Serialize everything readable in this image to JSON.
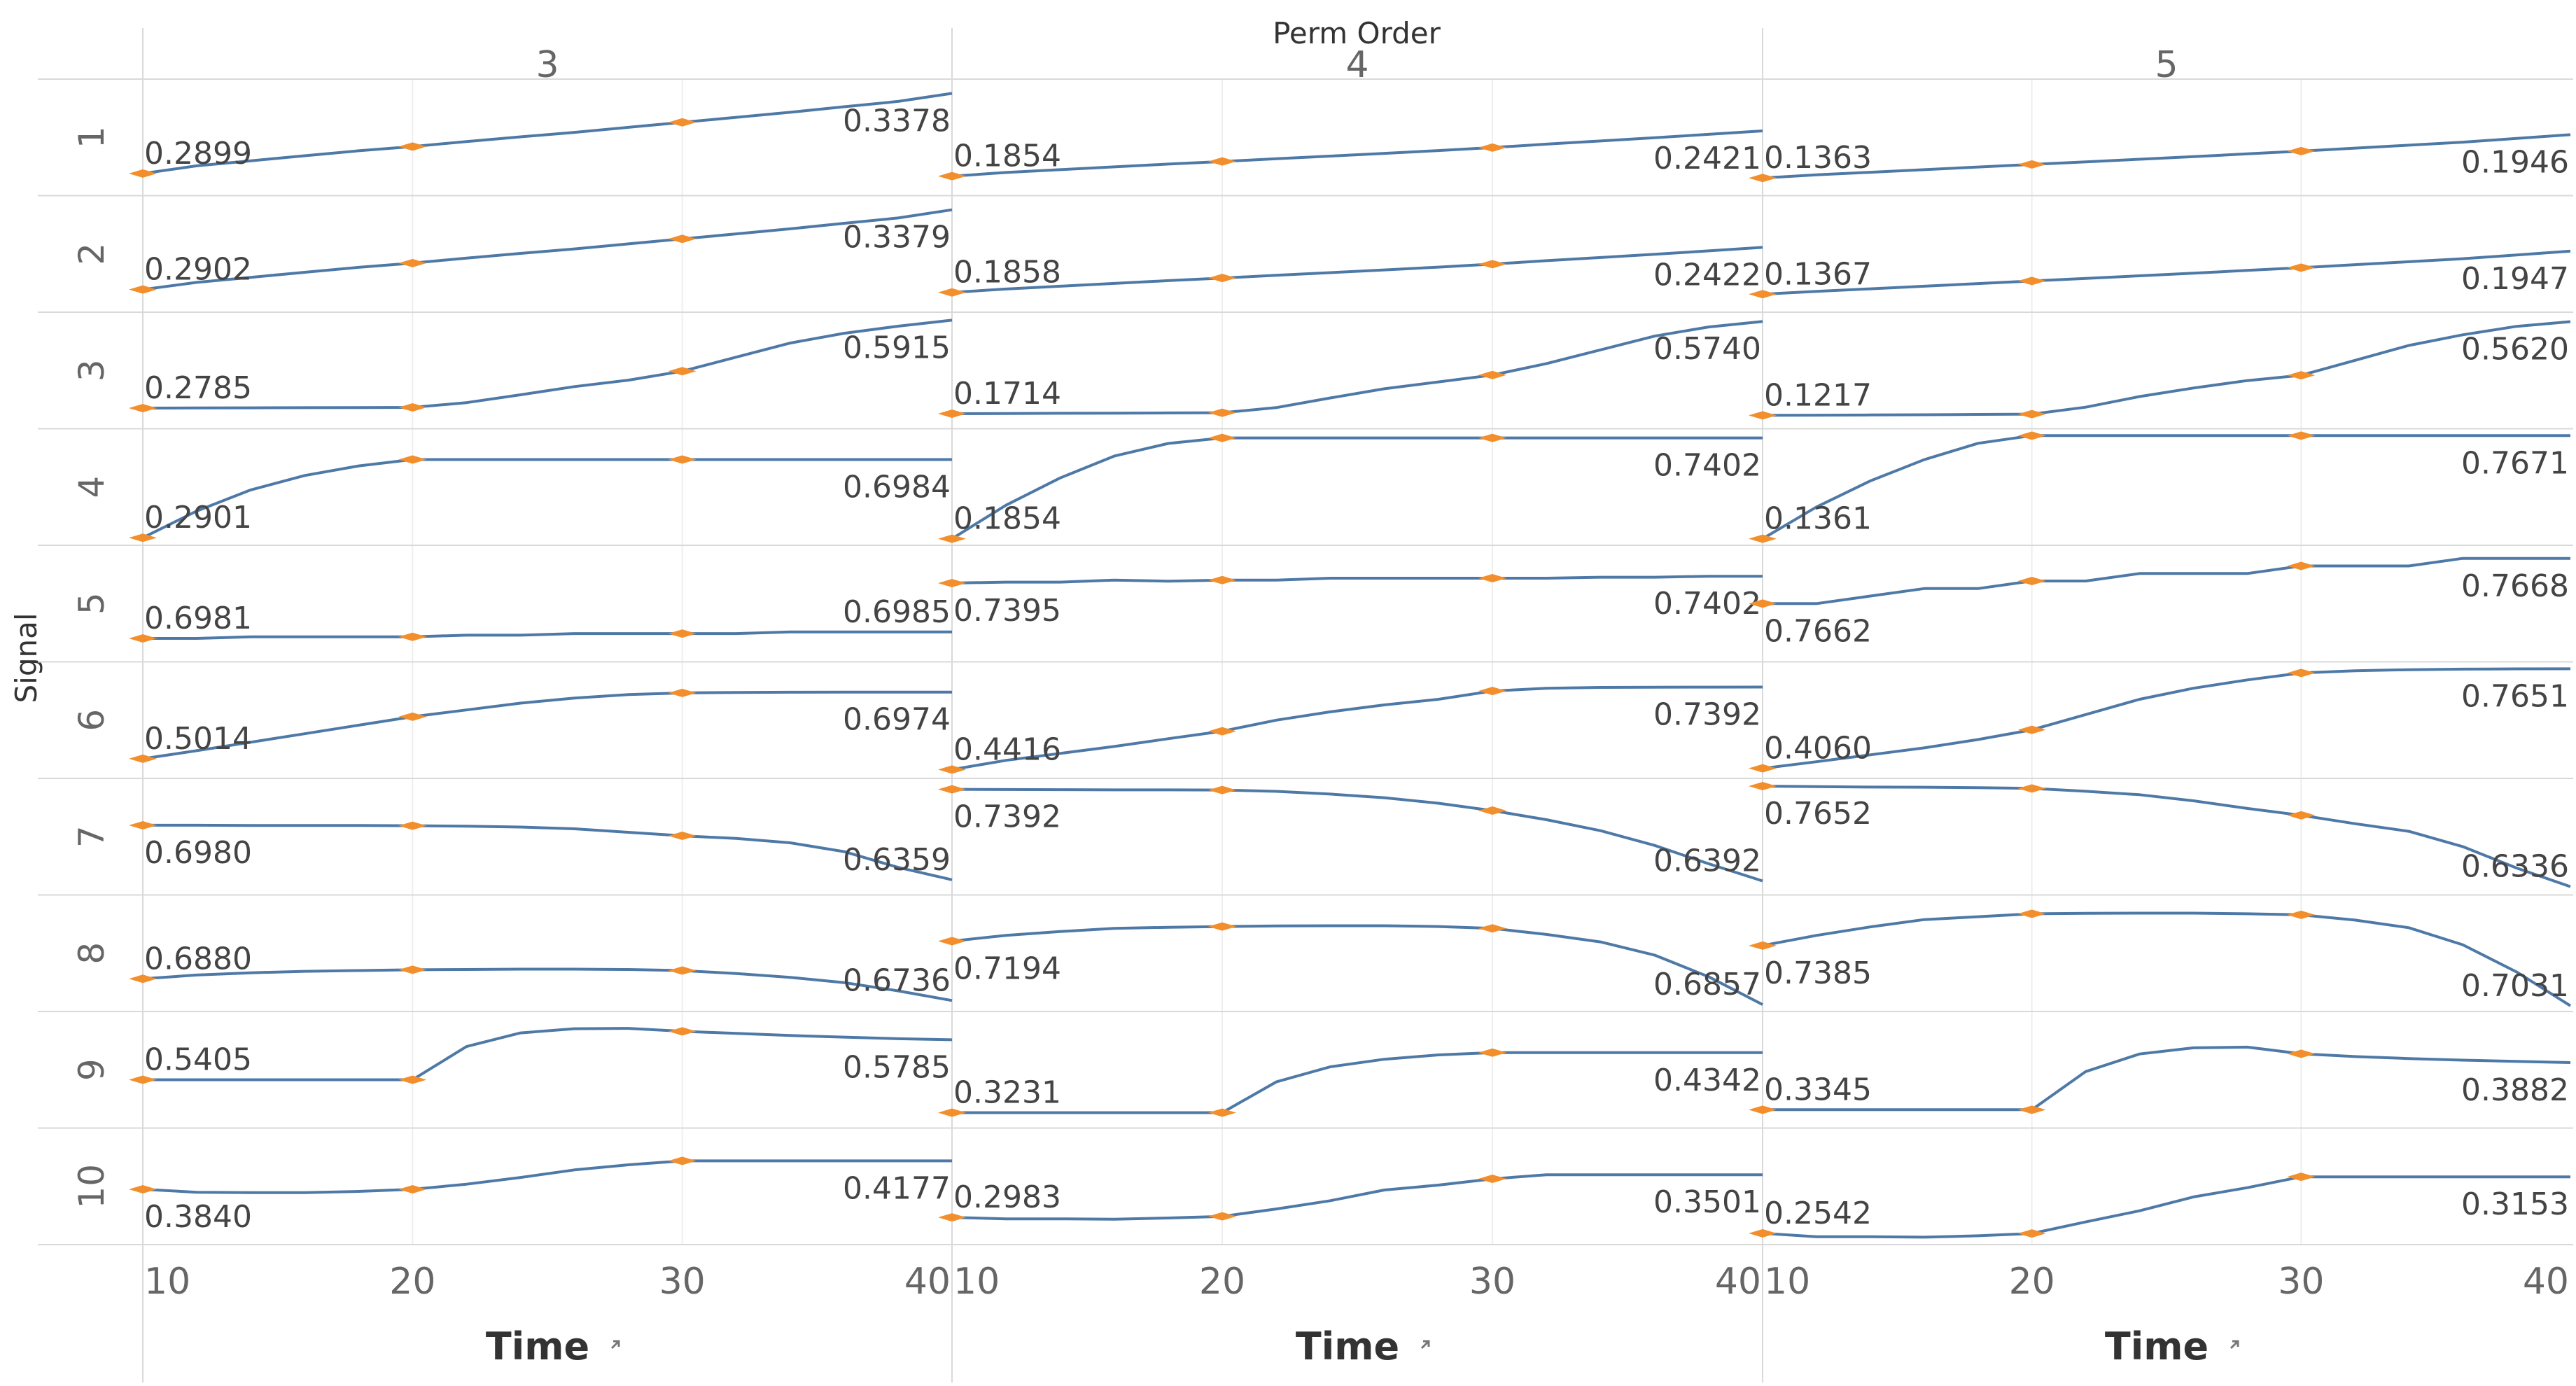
{
  "chart_data": {
    "type": "line",
    "title": "Perm Order",
    "column_field": "Perm Order",
    "row_field": "Signal",
    "xlabel": "Time",
    "xlabel_icon": "sort-arrow-icon",
    "x": [
      10,
      12,
      14,
      16,
      18,
      20,
      22,
      24,
      26,
      28,
      30,
      32,
      34,
      36,
      38,
      40
    ],
    "x_ticks": [
      "10",
      "20",
      "30",
      "40"
    ],
    "xlim": [
      10,
      40
    ],
    "line_color": "#4e79a7",
    "marker_color": "#f28e2b",
    "marker_x": [
      10,
      20,
      30
    ],
    "columns": [
      "3",
      "4",
      "5"
    ],
    "rows": [
      "1",
      "2",
      "3",
      "4",
      "5",
      "6",
      "7",
      "8",
      "9",
      "10"
    ],
    "panels": [
      [
        {
          "start": "0.2899",
          "end": "0.3378",
          "values": [
            0.2899,
            0.2945,
            0.2975,
            0.3005,
            0.3035,
            0.306,
            0.309,
            0.3118,
            0.3145,
            0.3175,
            0.3205,
            0.3235,
            0.3265,
            0.3298,
            0.333,
            0.3378
          ],
          "ylim": [
            0.28,
            0.343
          ]
        },
        {
          "start": "0.2902",
          "end": "0.3379",
          "values": [
            0.2902,
            0.2945,
            0.2975,
            0.3005,
            0.3035,
            0.306,
            0.309,
            0.3118,
            0.3145,
            0.3175,
            0.3205,
            0.3235,
            0.3265,
            0.3298,
            0.333,
            0.3379
          ],
          "ylim": [
            0.28,
            0.343
          ]
        },
        {
          "start": "0.2785",
          "end": "0.5915",
          "values": [
            0.2785,
            0.279,
            0.2795,
            0.28,
            0.2805,
            0.281,
            0.298,
            0.326,
            0.355,
            0.378,
            0.41,
            0.46,
            0.51,
            0.545,
            0.57,
            0.5915
          ],
          "ylim": [
            0.225,
            0.6
          ]
        },
        {
          "start": "0.2901",
          "end": "0.6984",
          "values": [
            0.2901,
            0.43,
            0.54,
            0.615,
            0.665,
            0.6984,
            0.6984,
            0.6984,
            0.6984,
            0.6984,
            0.6984,
            0.6984,
            0.6984,
            0.6984,
            0.6984,
            0.6984
          ],
          "ylim": [
            0.28,
            0.83
          ]
        },
        {
          "start": "0.6981",
          "end": "0.6985",
          "values": [
            0.6981,
            0.6981,
            0.6982,
            0.6982,
            0.6982,
            0.6982,
            0.6983,
            0.6983,
            0.6984,
            0.6984,
            0.6984,
            0.6984,
            0.6985,
            0.6985,
            0.6985,
            0.6985
          ],
          "ylim": [
            0.697,
            0.7035
          ]
        },
        {
          "start": "0.5014",
          "end": "0.6974",
          "values": [
            0.5014,
            0.525,
            0.55,
            0.575,
            0.6,
            0.625,
            0.645,
            0.665,
            0.68,
            0.69,
            0.695,
            0.6965,
            0.697,
            0.6972,
            0.6973,
            0.6974
          ],
          "ylim": [
            0.46,
            0.77
          ]
        },
        {
          "start": "0.6980",
          "end": "0.6359",
          "values": [
            0.698,
            0.698,
            0.6978,
            0.6978,
            0.6978,
            0.6975,
            0.697,
            0.696,
            0.694,
            0.69,
            0.686,
            0.683,
            0.678,
            0.668,
            0.65,
            0.6359
          ],
          "ylim": [
            0.625,
            0.745
          ]
        },
        {
          "start": "0.6880",
          "end": "0.6736",
          "values": [
            0.688,
            0.6905,
            0.692,
            0.693,
            0.6935,
            0.694,
            0.6942,
            0.6944,
            0.6944,
            0.6942,
            0.6935,
            0.6915,
            0.689,
            0.6855,
            0.68,
            0.6736
          ],
          "ylim": [
            0.67,
            0.74
          ]
        },
        {
          "start": "0.5405",
          "end": "0.5785",
          "values": [
            0.5405,
            0.5405,
            0.5405,
            0.5405,
            0.5405,
            0.5405,
            0.572,
            0.585,
            0.589,
            0.5893,
            0.5865,
            0.5845,
            0.5825,
            0.581,
            0.5795,
            0.5785
          ],
          "ylim": [
            0.5,
            0.6
          ]
        },
        {
          "start": "0.3840",
          "end": "0.4177",
          "values": [
            0.384,
            0.3805,
            0.38,
            0.38,
            0.3815,
            0.384,
            0.39,
            0.398,
            0.407,
            0.413,
            0.4177,
            0.4177,
            0.4177,
            0.4177,
            0.4177,
            0.4177
          ],
          "ylim": [
            0.325,
            0.45
          ]
        }
      ],
      [
        {
          "start": "0.1854",
          "end": "0.2421",
          "values": [
            0.1854,
            0.19,
            0.1935,
            0.197,
            0.2005,
            0.2038,
            0.2072,
            0.2105,
            0.214,
            0.2175,
            0.2212,
            0.2255,
            0.2295,
            0.2335,
            0.2378,
            0.2421
          ],
          "ylim": [
            0.168,
            0.3
          ]
        },
        {
          "start": "0.1858",
          "end": "0.2422",
          "values": [
            0.1858,
            0.19,
            0.1935,
            0.197,
            0.2005,
            0.2038,
            0.2072,
            0.2105,
            0.214,
            0.2175,
            0.2212,
            0.2255,
            0.2295,
            0.2335,
            0.2378,
            0.2422
          ],
          "ylim": [
            0.168,
            0.3
          ]
        },
        {
          "start": "0.1714",
          "end": "0.5740",
          "values": [
            0.1714,
            0.172,
            0.173,
            0.1735,
            0.1745,
            0.1754,
            0.198,
            0.24,
            0.28,
            0.31,
            0.34,
            0.39,
            0.45,
            0.51,
            0.55,
            0.574
          ],
          "ylim": [
            0.13,
            0.59
          ]
        },
        {
          "start": "0.1854",
          "end": "0.7402",
          "values": [
            0.1854,
            0.37,
            0.52,
            0.64,
            0.71,
            0.7402,
            0.7402,
            0.7402,
            0.7402,
            0.7402,
            0.7402,
            0.7402,
            0.7402,
            0.7402,
            0.7402,
            0.7402
          ],
          "ylim": [
            0.18,
            0.76
          ]
        },
        {
          "start": "0.7395",
          "end": "0.7402",
          "values": [
            0.7395,
            0.7396,
            0.7396,
            0.7398,
            0.7397,
            0.7398,
            0.7398,
            0.74,
            0.74,
            0.74,
            0.74,
            0.74,
            0.7401,
            0.7401,
            0.7402,
            0.7402
          ],
          "ylim": [
            0.732,
            0.7428
          ]
        },
        {
          "start": "0.4416",
          "end": "0.7392",
          "values": [
            0.4416,
            0.475,
            0.5,
            0.525,
            0.553,
            0.58,
            0.62,
            0.65,
            0.675,
            0.695,
            0.725,
            0.735,
            0.738,
            0.7388,
            0.739,
            0.7392
          ],
          "ylim": [
            0.43,
            0.81
          ]
        },
        {
          "start": "0.7392",
          "end": "0.6392",
          "values": [
            0.7392,
            0.739,
            0.7388,
            0.7386,
            0.7386,
            0.7384,
            0.737,
            0.734,
            0.73,
            0.724,
            0.716,
            0.706,
            0.694,
            0.678,
            0.658,
            0.6392
          ],
          "ylim": [
            0.63,
            0.745
          ]
        },
        {
          "start": "0.7194",
          "end": "0.6857",
          "values": [
            0.7194,
            0.7225,
            0.7245,
            0.7262,
            0.7268,
            0.7272,
            0.7275,
            0.7276,
            0.7276,
            0.7272,
            0.7262,
            0.723,
            0.719,
            0.712,
            0.7005,
            0.6857
          ],
          "ylim": [
            0.685,
            0.741
          ]
        },
        {
          "start": "0.3231",
          "end": "0.4342",
          "values": [
            0.3231,
            0.3231,
            0.3231,
            0.3231,
            0.3231,
            0.3231,
            0.38,
            0.408,
            0.422,
            0.43,
            0.4342,
            0.4342,
            0.4342,
            0.4342,
            0.4342,
            0.4342
          ],
          "ylim": [
            0.305,
            0.5
          ]
        },
        {
          "start": "0.2983",
          "end": "0.3501",
          "values": [
            0.2983,
            0.2965,
            0.2965,
            0.296,
            0.2975,
            0.2995,
            0.3085,
            0.3185,
            0.3315,
            0.3375,
            0.3451,
            0.3501,
            0.3501,
            0.3501,
            0.3501,
            0.3501
          ],
          "ylim": [
            0.272,
            0.4
          ]
        }
      ],
      [
        {
          "start": "0.1363",
          "end": "0.1946",
          "values": [
            0.1363,
            0.1405,
            0.144,
            0.1475,
            0.151,
            0.1545,
            0.158,
            0.1615,
            0.165,
            0.1688,
            0.1725,
            0.1765,
            0.1805,
            0.1845,
            0.1895,
            0.1946
          ],
          "ylim": [
            0.12,
            0.262
          ]
        },
        {
          "start": "0.1367",
          "end": "0.1947",
          "values": [
            0.1367,
            0.1405,
            0.144,
            0.1475,
            0.151,
            0.1545,
            0.158,
            0.1615,
            0.165,
            0.1688,
            0.1725,
            0.1765,
            0.1805,
            0.1845,
            0.1895,
            0.1947
          ],
          "ylim": [
            0.12,
            0.262
          ]
        },
        {
          "start": "0.1217",
          "end": "0.5620",
          "values": [
            0.1217,
            0.1225,
            0.1235,
            0.1245,
            0.126,
            0.1275,
            0.16,
            0.21,
            0.25,
            0.285,
            0.31,
            0.38,
            0.45,
            0.5,
            0.54,
            0.562
          ],
          "ylim": [
            0.085,
            0.58
          ]
        },
        {
          "start": "0.1361",
          "end": "0.7671",
          "values": [
            0.1361,
            0.33,
            0.49,
            0.62,
            0.72,
            0.7671,
            0.7671,
            0.7671,
            0.7671,
            0.7671,
            0.7671,
            0.7671,
            0.7671,
            0.7671,
            0.7671,
            0.7671
          ],
          "ylim": [
            0.13,
            0.775
          ]
        },
        {
          "start": "0.7662",
          "end": "0.7668",
          "values": [
            0.7662,
            0.7662,
            0.7663,
            0.7664,
            0.7664,
            0.7665,
            0.7665,
            0.7666,
            0.7666,
            0.7666,
            0.7667,
            0.7667,
            0.7667,
            0.7668,
            0.7668,
            0.7668
          ],
          "ylim": [
            0.7655,
            0.7669
          ]
        },
        {
          "start": "0.4060",
          "end": "0.7651",
          "values": [
            0.406,
            0.43,
            0.455,
            0.48,
            0.51,
            0.545,
            0.6,
            0.655,
            0.695,
            0.725,
            0.75,
            0.758,
            0.762,
            0.764,
            0.765,
            0.7651
          ],
          "ylim": [
            0.39,
            0.77
          ]
        },
        {
          "start": "0.7652",
          "end": "0.6336",
          "values": [
            0.7652,
            0.7646,
            0.764,
            0.7638,
            0.7632,
            0.7622,
            0.7585,
            0.754,
            0.746,
            0.736,
            0.727,
            0.716,
            0.706,
            0.686,
            0.658,
            0.6336
          ],
          "ylim": [
            0.63,
            0.768
          ]
        },
        {
          "start": "0.7385",
          "end": "0.7031",
          "values": [
            0.7385,
            0.7445,
            0.7495,
            0.7538,
            0.7555,
            0.7572,
            0.7575,
            0.7576,
            0.7576,
            0.7572,
            0.7566,
            0.7535,
            0.749,
            0.739,
            0.723,
            0.7031
          ],
          "ylim": [
            0.703,
            0.765
          ]
        },
        {
          "start": "0.3345",
          "end": "0.3882",
          "values": [
            0.3345,
            0.3345,
            0.3345,
            0.3345,
            0.3345,
            0.3345,
            0.378,
            0.398,
            0.405,
            0.4058,
            0.3982,
            0.395,
            0.3928,
            0.391,
            0.3895,
            0.3882
          ],
          "ylim": [
            0.32,
            0.44
          ]
        },
        {
          "start": "0.2542",
          "end": "0.3153",
          "values": [
            0.2542,
            0.2505,
            0.2505,
            0.25,
            0.2515,
            0.254,
            0.2665,
            0.2785,
            0.2935,
            0.3035,
            0.3153,
            0.3153,
            0.3153,
            0.3153,
            0.3153,
            0.3153
          ],
          "ylim": [
            0.248,
            0.362
          ]
        }
      ]
    ]
  }
}
